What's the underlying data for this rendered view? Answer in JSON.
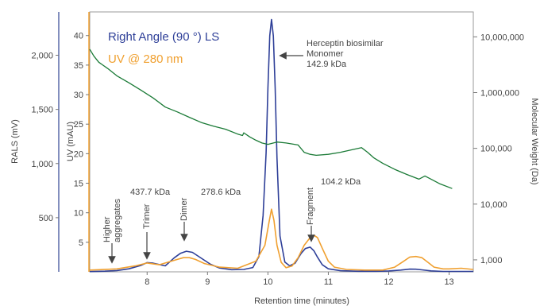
{
  "chart_data": {
    "type": "line",
    "xlabel": "Retention time (minutes)",
    "x_ticks": [
      8,
      9,
      10,
      11,
      12,
      13
    ],
    "xlim": [
      7.05,
      13.4
    ],
    "axes": {
      "rals": {
        "label": "RALS (mV)",
        "ticks": [
          500,
          1000,
          1500,
          2000
        ],
        "tick_labels": [
          "500",
          "1,000",
          "1,500",
          "2,000"
        ],
        "ylim": [
          0,
          2400
        ],
        "color": "#5a6aa8"
      },
      "uv": {
        "label": "UV (mAU)",
        "ticks": [
          5,
          10,
          15,
          20,
          25,
          30,
          35,
          40
        ],
        "tick_labels": [
          "5",
          "10",
          "15",
          "20",
          "25",
          "30",
          "35",
          "40"
        ],
        "ylim": [
          0,
          44
        ],
        "color": "#f0a030"
      },
      "mw": {
        "label": "Molecular Weight (Da)",
        "scale": "log",
        "ticks": [
          1000,
          10000,
          100000,
          1000000,
          10000000
        ],
        "tick_labels": [
          "1,000",
          "10,000",
          "100,000",
          "1,000,000",
          "10,000,000"
        ],
        "ylim": [
          610,
          28000000
        ],
        "color": "#555555"
      }
    },
    "legend": {
      "placement": "top-left",
      "entries": [
        {
          "text": "Right Angle (90 °) LS",
          "color": "#2e3f98"
        },
        {
          "text": "UV @ 280 nm",
          "color": "#f0a030"
        }
      ]
    },
    "series": [
      {
        "key": "rals",
        "color": "#2e3f98",
        "axis": "rals",
        "x": [
          7.05,
          7.3,
          7.5,
          7.7,
          7.9,
          8.0,
          8.1,
          8.3,
          8.45,
          8.55,
          8.65,
          8.75,
          8.9,
          9.05,
          9.2,
          9.4,
          9.6,
          9.75,
          9.85,
          9.92,
          9.97,
          10.0,
          10.03,
          10.06,
          10.09,
          10.12,
          10.15,
          10.2,
          10.28,
          10.36,
          10.45,
          10.55,
          10.62,
          10.7,
          10.76,
          10.82,
          10.9,
          11.0,
          11.2,
          11.5,
          11.8,
          12.0,
          12.2,
          12.35,
          12.45,
          12.55,
          12.7,
          12.9,
          13.1,
          13.4
        ],
        "y": [
          2,
          6,
          12,
          28,
          60,
          85,
          80,
          55,
          130,
          170,
          190,
          180,
          125,
          70,
          35,
          20,
          22,
          40,
          140,
          520,
          1100,
          1700,
          2180,
          2330,
          2180,
          1700,
          1050,
          330,
          90,
          55,
          80,
          170,
          215,
          228,
          195,
          135,
          65,
          28,
          10,
          5,
          5,
          8,
          16,
          25,
          24,
          18,
          9,
          4,
          4,
          4
        ]
      },
      {
        "key": "uv",
        "color": "#f0a030",
        "axis": "uv",
        "x": [
          7.05,
          7.5,
          7.8,
          8.0,
          8.2,
          8.4,
          8.5,
          8.6,
          8.7,
          8.8,
          8.95,
          9.2,
          9.5,
          9.8,
          9.95,
          10.02,
          10.06,
          10.1,
          10.15,
          10.22,
          10.3,
          10.4,
          10.5,
          10.6,
          10.7,
          10.76,
          10.82,
          10.9,
          11.0,
          11.1,
          11.3,
          11.6,
          11.9,
          12.1,
          12.25,
          12.35,
          12.45,
          12.55,
          12.65,
          12.75,
          12.9,
          13.0,
          13.2,
          13.4
        ],
        "y": [
          0.3,
          0.5,
          1.0,
          1.5,
          1.2,
          1.8,
          2.1,
          2.4,
          2.4,
          2.1,
          1.4,
          0.8,
          0.6,
          1.8,
          4.5,
          8.5,
          10.6,
          8.7,
          4.5,
          1.6,
          0.7,
          1.0,
          2.4,
          4.5,
          5.8,
          6.2,
          5.8,
          4.0,
          1.8,
          0.8,
          0.4,
          0.3,
          0.3,
          0.8,
          1.8,
          2.5,
          2.6,
          2.4,
          1.6,
          0.8,
          0.5,
          0.5,
          0.6,
          0.4
        ]
      },
      {
        "key": "mw",
        "color": "#1a7a36",
        "axis": "mw",
        "x": [
          7.05,
          7.12,
          7.2,
          7.35,
          7.5,
          7.7,
          7.9,
          8.1,
          8.3,
          8.5,
          8.7,
          8.9,
          9.1,
          9.3,
          9.5,
          9.58,
          9.6,
          9.7,
          9.8,
          9.9,
          10.0,
          10.15,
          10.3,
          10.5,
          10.6,
          10.7,
          10.8,
          11.0,
          11.2,
          11.4,
          11.55,
          11.65,
          11.75,
          11.9,
          12.1,
          12.3,
          12.5,
          12.6,
          12.7,
          12.85,
          13.05
        ],
        "y": [
          6000000,
          4500000,
          3500000,
          2700000,
          2000000,
          1500000,
          1100000,
          800000,
          550000,
          450000,
          360000,
          290000,
          250000,
          220000,
          180000,
          170000,
          190000,
          160000,
          140000,
          125000,
          118000,
          130000,
          125000,
          115000,
          85000,
          78000,
          75000,
          78000,
          85000,
          95000,
          103000,
          85000,
          68000,
          54000,
          42000,
          34000,
          28000,
          32000,
          28000,
          23000,
          19000
        ]
      }
    ],
    "annotations": [
      {
        "lines": [
          "Herceptin biosimilar",
          "Monomer",
          "142.9 kDa"
        ]
      },
      {
        "lines": [
          "Higher",
          "aggregates"
        ],
        "rotated": true
      },
      {
        "lines": [
          "Trimer"
        ],
        "rotated": true
      },
      {
        "lines": [
          "437.7 kDa"
        ]
      },
      {
        "lines": [
          "Dimer"
        ],
        "rotated": true
      },
      {
        "lines": [
          "278.6 kDa"
        ]
      },
      {
        "lines": [
          "Fragment"
        ],
        "rotated": true
      },
      {
        "lines": [
          "104.2 kDa"
        ]
      }
    ]
  }
}
